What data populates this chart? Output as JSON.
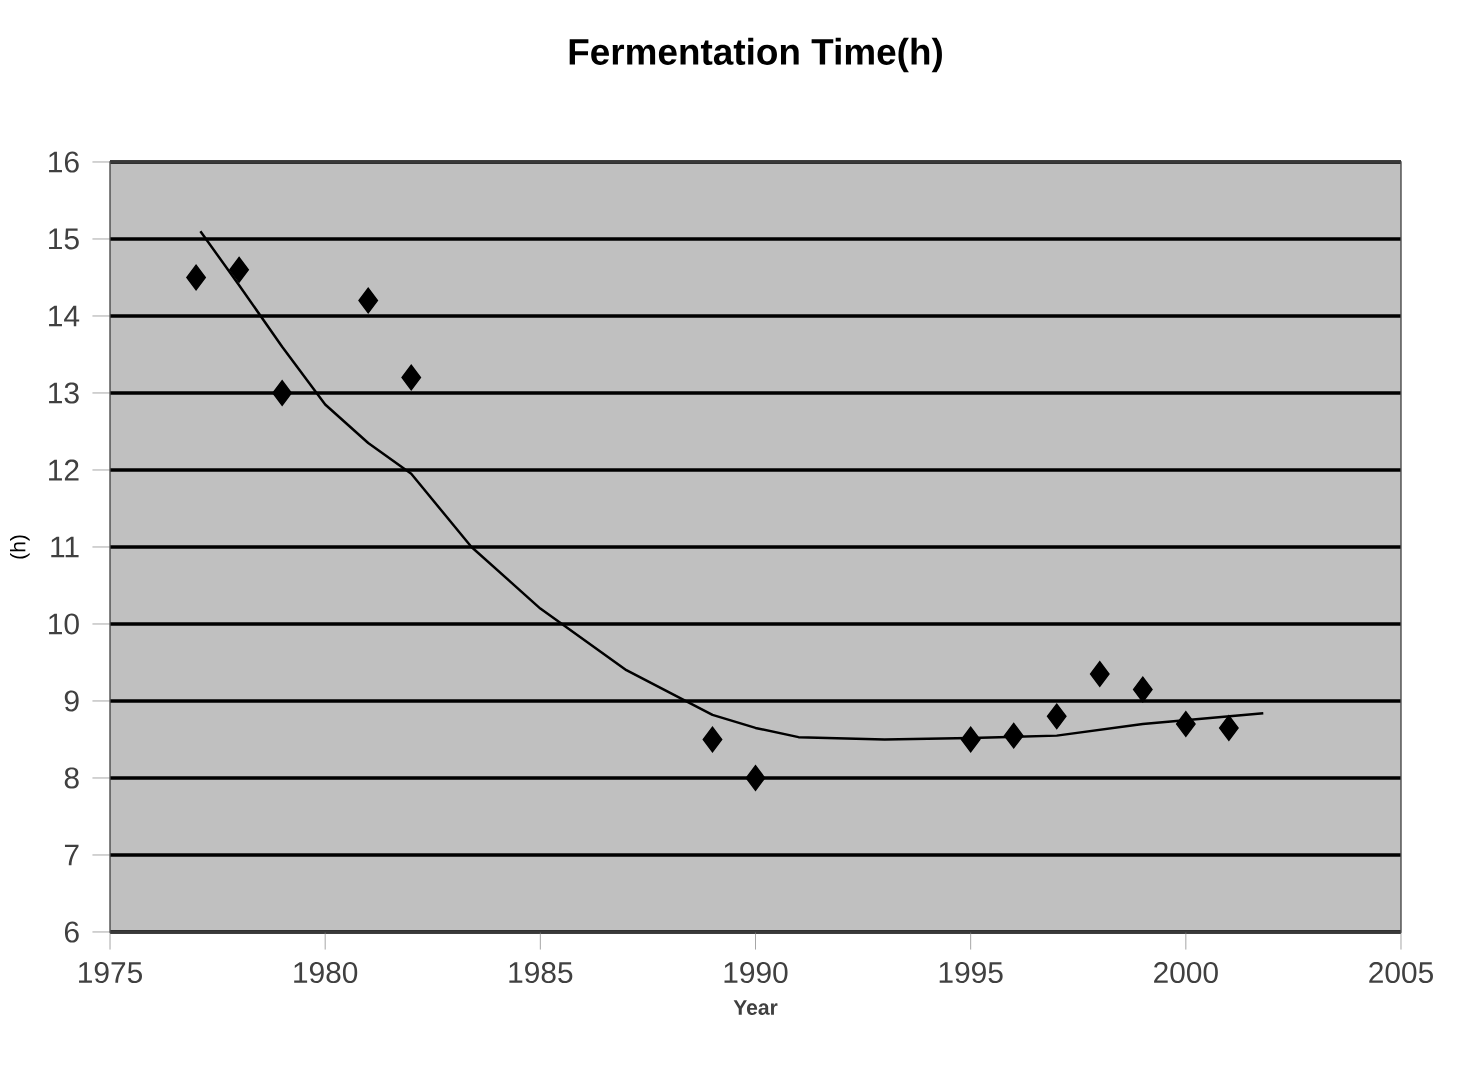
{
  "chart_data": {
    "type": "scatter",
    "title": "Fermentation Time(h)",
    "xlabel": "Year",
    "ylabel": "(h)",
    "xlim": [
      1975,
      2005
    ],
    "xticks": [
      1975,
      1980,
      1985,
      1990,
      1995,
      2000,
      2005
    ],
    "ylim": [
      6,
      16
    ],
    "yticks": [
      6,
      7,
      8,
      9,
      10,
      11,
      12,
      13,
      14,
      15,
      16
    ],
    "grid": "y",
    "marker": "diamond",
    "series": [
      {
        "color": "#000000",
        "x": [
          1977,
          1978,
          1979,
          1981,
          1982,
          1989,
          1990,
          1995,
          1996,
          1997,
          1998,
          1999,
          2000,
          2001
        ],
        "values": [
          14.5,
          14.6,
          13.0,
          14.2,
          13.2,
          8.5,
          8.0,
          8.5,
          8.55,
          8.8,
          9.35,
          9.15,
          8.7,
          8.65
        ]
      },
      {
        "type": "line",
        "color": "#000000",
        "marker": "none",
        "x": [
          1977.1,
          1978,
          1979,
          1980,
          1981,
          1982,
          1983.4,
          1985,
          1987,
          1989,
          1990,
          1991,
          1993,
          1995,
          1997,
          1999,
          2001.8
        ],
        "values": [
          15.1,
          14.4,
          13.6,
          12.85,
          12.35,
          11.95,
          11.0,
          10.2,
          9.4,
          8.82,
          8.65,
          8.53,
          8.5,
          8.52,
          8.55,
          8.7,
          8.84
        ]
      }
    ]
  }
}
